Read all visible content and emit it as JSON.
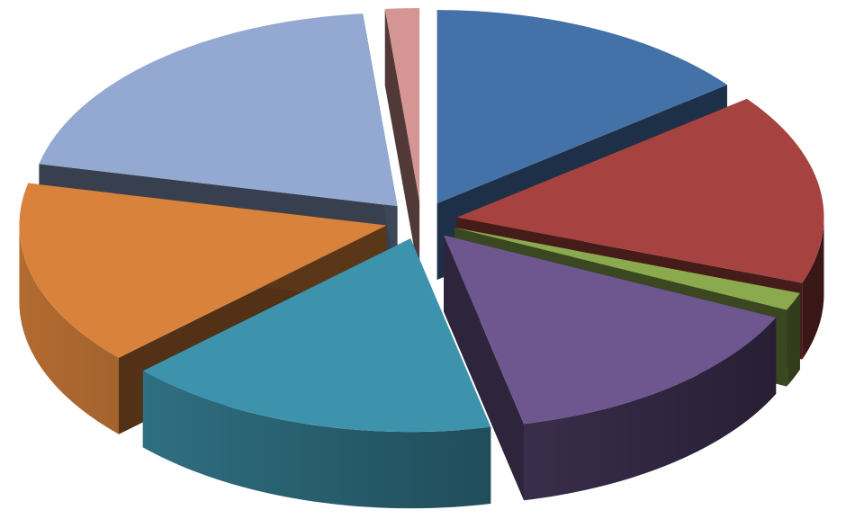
{
  "chart_data": {
    "type": "pie",
    "style": "3d-exploded",
    "legend": "none",
    "data_labels": "none",
    "slices": [
      {
        "name": "",
        "value": 14.5,
        "color": "#4472A8"
      },
      {
        "name": "",
        "value": 16.0,
        "color": "#A64341"
      },
      {
        "name": "",
        "value": 1.5,
        "color": "#8BAA4E"
      },
      {
        "name": "",
        "value": 14.5,
        "color": "#6E568F"
      },
      {
        "name": "",
        "value": 16.5,
        "color": "#3E93AC"
      },
      {
        "name": "",
        "value": 15.5,
        "color": "#D9823C"
      },
      {
        "name": "",
        "value": 20.0,
        "color": "#93A9D1"
      },
      {
        "name": "",
        "value": 1.5,
        "color": "#D49593"
      }
    ]
  }
}
